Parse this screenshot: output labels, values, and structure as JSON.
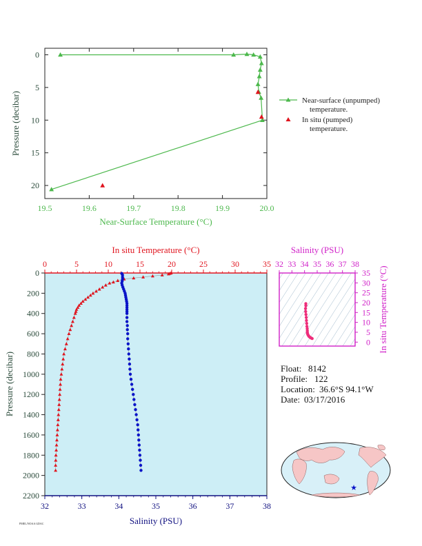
{
  "colors": {
    "green": "#4cb84c",
    "red": "#e0141e",
    "blue": "#0a14c8",
    "magenta": "#d020c8",
    "dark": "#222222",
    "navy": "#101080",
    "plot_bg": "#cdeef6",
    "land": "#f6c6c6",
    "ocean": "#d8f0f8"
  },
  "info": {
    "float_label": "Float:",
    "float_value": "8142",
    "profile_label": "Profile:",
    "profile_value": "122",
    "location_label": "Location:",
    "location_value": "36.6°S  94.1°W",
    "date_label": "Date:",
    "date_value": "03/17/2016"
  },
  "map": {
    "marker_icon": "star-icon"
  },
  "footer_text": "PMEL/NOAA GDAC",
  "chart_data": [
    {
      "type": "line",
      "xlabel": "Near-Surface Temperature (°C)",
      "ylabel": "Pressure (decibar)",
      "xlim": [
        19.5,
        20.0
      ],
      "ylim": [
        22,
        -1
      ],
      "xticks": [
        "19.5",
        "19.6",
        "19.7",
        "19.8",
        "19.9",
        "20.0"
      ],
      "yticks": [
        "0",
        "5",
        "10",
        "15",
        "20"
      ],
      "grid": false,
      "legend_position": "right",
      "legend": [
        {
          "line1": "Near-surface (unpumped)",
          "line2": "temperature."
        },
        {
          "line1": "In situ (pumped)",
          "line2": "temperature."
        }
      ],
      "series": [
        {
          "name": "Near-surface (unpumped) temperature.",
          "color": "#4cb84c",
          "marker": "triangle",
          "points": [
            [
              19.535,
              0.0
            ],
            [
              19.925,
              0.0
            ],
            [
              19.955,
              -0.1
            ],
            [
              19.97,
              0.0
            ],
            [
              19.985,
              0.3
            ],
            [
              19.988,
              1.3
            ],
            [
              19.985,
              2.3
            ],
            [
              19.983,
              3.3
            ],
            [
              19.98,
              4.5
            ],
            [
              19.982,
              5.7
            ],
            [
              19.987,
              6.6
            ],
            [
              19.99,
              10.0
            ],
            [
              19.515,
              20.6
            ]
          ]
        },
        {
          "name": "In situ (pumped) temperature.",
          "color": "#e0141e",
          "marker": "triangle",
          "points": [
            [
              19.98,
              5.7
            ],
            [
              19.988,
              9.5
            ],
            [
              19.63,
              20.0
            ]
          ]
        }
      ]
    },
    {
      "type": "scatter",
      "ylabel": "Pressure (decibar)",
      "ylim": [
        2200,
        0
      ],
      "yticks": [
        "0",
        "200",
        "400",
        "600",
        "800",
        "1000",
        "1200",
        "1400",
        "1600",
        "1800",
        "2000",
        "2200"
      ],
      "top_axis": {
        "label": "In situ Temperature (°C)",
        "range": [
          0,
          35
        ],
        "ticks": [
          "0",
          "5",
          "10",
          "15",
          "20",
          "25",
          "30",
          "35"
        ]
      },
      "bottom_axis": {
        "label": "Salinity (PSU)",
        "range": [
          32,
          38
        ],
        "ticks": [
          "32",
          "33",
          "34",
          "35",
          "36",
          "37",
          "38"
        ]
      },
      "series": [
        {
          "name": "In situ Temperature (°C)",
          "color": "#e0141e",
          "marker": "triangle",
          "points": [
            [
              19.9,
              0
            ],
            [
              19.7,
              5
            ],
            [
              19.5,
              10
            ],
            [
              18.5,
              20
            ],
            [
              17.0,
              30
            ],
            [
              15.5,
              40
            ],
            [
              14.0,
              50
            ],
            [
              12.5,
              60
            ],
            [
              11.5,
              75
            ],
            [
              10.8,
              90
            ],
            [
              10.2,
              100
            ],
            [
              9.6,
              120
            ],
            [
              9.1,
              140
            ],
            [
              8.6,
              160
            ],
            [
              8.1,
              180
            ],
            [
              7.6,
              200
            ],
            [
              7.2,
              220
            ],
            [
              6.8,
              240
            ],
            [
              6.4,
              260
            ],
            [
              6.0,
              280
            ],
            [
              5.7,
              300
            ],
            [
              5.4,
              320
            ],
            [
              5.2,
              340
            ],
            [
              5.0,
              360
            ],
            [
              4.9,
              380
            ],
            [
              4.8,
              400
            ],
            [
              4.6,
              440
            ],
            [
              4.4,
              480
            ],
            [
              4.2,
              520
            ],
            [
              4.0,
              560
            ],
            [
              3.8,
              600
            ],
            [
              3.6,
              650
            ],
            [
              3.4,
              700
            ],
            [
              3.2,
              750
            ],
            [
              3.0,
              800
            ],
            [
              2.9,
              850
            ],
            [
              2.8,
              900
            ],
            [
              2.7,
              950
            ],
            [
              2.6,
              1000
            ],
            [
              2.5,
              1050
            ],
            [
              2.45,
              1100
            ],
            [
              2.4,
              1150
            ],
            [
              2.35,
              1200
            ],
            [
              2.3,
              1250
            ],
            [
              2.25,
              1300
            ],
            [
              2.2,
              1350
            ],
            [
              2.15,
              1400
            ],
            [
              2.1,
              1450
            ],
            [
              2.05,
              1500
            ],
            [
              2.0,
              1550
            ],
            [
              1.95,
              1600
            ],
            [
              1.9,
              1650
            ],
            [
              1.85,
              1700
            ],
            [
              1.8,
              1750
            ],
            [
              1.75,
              1800
            ],
            [
              1.72,
              1850
            ],
            [
              1.7,
              1900
            ],
            [
              1.7,
              1950
            ]
          ]
        },
        {
          "name": "Salinity (PSU)",
          "color": "#0a14c8",
          "marker": "circle",
          "points": [
            [
              34.08,
              5
            ],
            [
              34.1,
              20
            ],
            [
              34.1,
              40
            ],
            [
              34.1,
              60
            ],
            [
              34.09,
              80
            ],
            [
              34.08,
              100
            ],
            [
              34.09,
              120
            ],
            [
              34.11,
              140
            ],
            [
              34.13,
              160
            ],
            [
              34.15,
              180
            ],
            [
              34.17,
              200
            ],
            [
              34.18,
              220
            ],
            [
              34.19,
              240
            ],
            [
              34.2,
              260
            ],
            [
              34.21,
              280
            ],
            [
              34.22,
              300
            ],
            [
              34.22,
              320
            ],
            [
              34.22,
              340
            ],
            [
              34.22,
              360
            ],
            [
              34.22,
              380
            ],
            [
              34.22,
              400
            ],
            [
              34.22,
              440
            ],
            [
              34.22,
              480
            ],
            [
              34.23,
              520
            ],
            [
              34.23,
              560
            ],
            [
              34.24,
              600
            ],
            [
              34.24,
              650
            ],
            [
              34.25,
              700
            ],
            [
              34.26,
              750
            ],
            [
              34.27,
              800
            ],
            [
              34.28,
              850
            ],
            [
              34.29,
              900
            ],
            [
              34.3,
              950
            ],
            [
              34.31,
              1000
            ],
            [
              34.33,
              1050
            ],
            [
              34.35,
              1100
            ],
            [
              34.37,
              1150
            ],
            [
              34.39,
              1200
            ],
            [
              34.41,
              1250
            ],
            [
              34.43,
              1300
            ],
            [
              34.45,
              1350
            ],
            [
              34.47,
              1400
            ],
            [
              34.49,
              1450
            ],
            [
              34.51,
              1500
            ],
            [
              34.52,
              1550
            ],
            [
              34.53,
              1600
            ],
            [
              34.54,
              1650
            ],
            [
              34.55,
              1700
            ],
            [
              34.56,
              1750
            ],
            [
              34.57,
              1800
            ],
            [
              34.58,
              1850
            ],
            [
              34.59,
              1900
            ],
            [
              34.6,
              1950
            ]
          ]
        }
      ]
    },
    {
      "type": "scatter",
      "title": "Salinity (PSU)",
      "ylabel": "In situ Temperature (°C)",
      "xlim": [
        32,
        38
      ],
      "ylim": [
        -2,
        35
      ],
      "xticks": [
        "32",
        "33",
        "34",
        "35",
        "36",
        "37",
        "38"
      ],
      "yticks": [
        "0",
        "5",
        "10",
        "15",
        "20",
        "25",
        "30",
        "35"
      ],
      "color": "#ee2d7a",
      "points": [
        [
          34.1,
          19.5
        ],
        [
          34.1,
          18.5
        ],
        [
          34.08,
          17.0
        ],
        [
          34.09,
          15.5
        ],
        [
          34.11,
          14.0
        ],
        [
          34.13,
          12.5
        ],
        [
          34.15,
          11.0
        ],
        [
          34.17,
          9.5
        ],
        [
          34.19,
          8.0
        ],
        [
          34.21,
          6.8
        ],
        [
          34.22,
          5.8
        ],
        [
          34.22,
          5.0
        ],
        [
          34.23,
          4.5
        ],
        [
          34.25,
          4.0
        ],
        [
          34.28,
          3.6
        ],
        [
          34.32,
          3.2
        ],
        [
          34.36,
          2.8
        ],
        [
          34.42,
          2.5
        ],
        [
          34.48,
          2.2
        ],
        [
          34.54,
          2.0
        ],
        [
          34.6,
          1.8
        ]
      ]
    }
  ]
}
